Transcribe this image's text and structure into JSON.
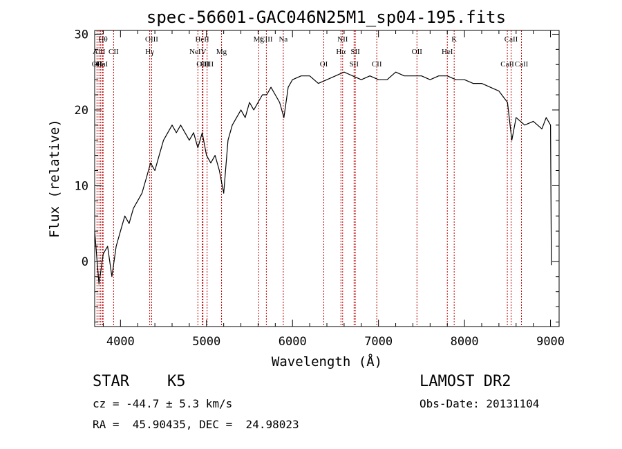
{
  "chart_data": {
    "type": "line",
    "title": "spec-56601-GAC046N25M1_sp04-195.fits",
    "xlabel": "Wavelength (Å)",
    "ylabel": "Flux (relative)",
    "xlim": [
      3700,
      9100
    ],
    "ylim": [
      -8.6,
      30.5
    ],
    "xticks": [
      4000,
      5000,
      6000,
      7000,
      8000,
      9000
    ],
    "yticks": [
      0,
      10,
      20,
      30
    ],
    "grid": false,
    "line_color": "#000000",
    "marker_color": "#c00000",
    "series": [
      {
        "x": [
          3700,
          3750,
          3800,
          3850,
          3900,
          3950,
          4000,
          4050,
          4100,
          4150,
          4200,
          4250,
          4300,
          4350,
          4400,
          4450,
          4500,
          4550,
          4600,
          4650,
          4700,
          4750,
          4800,
          4850,
          4900,
          4950,
          5000,
          5050,
          5100,
          5150,
          5200,
          5250,
          5300,
          5350,
          5400,
          5450,
          5500,
          5550,
          5600,
          5650,
          5700,
          5750,
          5800,
          5850,
          5900,
          5950,
          6000,
          6100,
          6200,
          6300,
          6400,
          6500,
          6600,
          6700,
          6800,
          6900,
          7000,
          7100,
          7200,
          7300,
          7400,
          7500,
          7600,
          7700,
          7800,
          7900,
          8000,
          8100,
          8200,
          8300,
          8400,
          8500,
          8550,
          8600,
          8700,
          8800,
          8900,
          8950,
          9000,
          9010
        ],
        "y": [
          4,
          -3,
          1,
          2,
          -2,
          2,
          4,
          6,
          5,
          7,
          8,
          9,
          11,
          13,
          12,
          14,
          16,
          17,
          18,
          17,
          18,
          17,
          16,
          17,
          15,
          17,
          14,
          13,
          14,
          12,
          9,
          16,
          18,
          19,
          20,
          19,
          21,
          20,
          21,
          22,
          22,
          23,
          22,
          21,
          19,
          23,
          24,
          24.5,
          24.5,
          23.5,
          24,
          24.5,
          25,
          24.5,
          24,
          24.5,
          24,
          24,
          25,
          24.5,
          24.5,
          24.5,
          24,
          24.5,
          24.5,
          24,
          24,
          23.5,
          23.5,
          23,
          22.5,
          21,
          16,
          19,
          18,
          18.5,
          17.5,
          19,
          18,
          -0.5
        ]
      }
    ],
    "spectral_lines": [
      {
        "name": "Hθ",
        "wavelength": 3798,
        "row": 1
      },
      {
        "name": "AlII",
        "wavelength": 3750,
        "row": 2
      },
      {
        "name": "CII",
        "wavelength": 3920,
        "row": 2
      },
      {
        "name": "OII",
        "wavelength": 3727,
        "row": 3
      },
      {
        "name": "Hε",
        "wavelength": 3770,
        "row": 3
      },
      {
        "name": "CaI",
        "wavelength": 3790,
        "row": 3
      },
      {
        "name": "OIII",
        "wavelength": 4363,
        "row": 1
      },
      {
        "name": "Hγ",
        "wavelength": 4340,
        "row": 2
      },
      {
        "name": "HeII",
        "wavelength": 4950,
        "row": 1
      },
      {
        "name": "NeIV",
        "wavelength": 4900,
        "row": 2
      },
      {
        "name": "OIII",
        "wavelength": 4959,
        "row": 3
      },
      {
        "name": "OIII",
        "wavelength": 5007,
        "row": 3
      },
      {
        "name": "Mg",
        "wavelength": 5175,
        "row": 2
      },
      {
        "name": "Mg",
        "wavelength": 5607,
        "row": 1
      },
      {
        "name": "CIII",
        "wavelength": 5696,
        "row": 1
      },
      {
        "name": "Na",
        "wavelength": 5893,
        "row": 1
      },
      {
        "name": "NII",
        "wavelength": 6583,
        "row": 1
      },
      {
        "name": "OI",
        "wavelength": 6364,
        "row": 3
      },
      {
        "name": "Hα",
        "wavelength": 6563,
        "row": 2
      },
      {
        "name": "SII",
        "wavelength": 6730,
        "row": 2
      },
      {
        "name": "SII",
        "wavelength": 6716,
        "row": 3
      },
      {
        "name": "CII",
        "wavelength": 6980,
        "row": 3
      },
      {
        "name": "OII",
        "wavelength": 7447,
        "row": 2
      },
      {
        "name": "K",
        "wavelength": 7880,
        "row": 1
      },
      {
        "name": "HeI",
        "wavelength": 7800,
        "row": 2
      },
      {
        "name": "CaII",
        "wavelength": 8542,
        "row": 1
      },
      {
        "name": "CaII",
        "wavelength": 8498,
        "row": 3
      },
      {
        "name": "CaII",
        "wavelength": 8662,
        "row": 3
      }
    ]
  },
  "info": {
    "class_label": "STAR",
    "subclass": "K5",
    "survey": "LAMOST DR2",
    "redshift_line": "cz = -44.7 ± 5.3 km/s",
    "obs_date_line": "Obs-Date: 20131104",
    "coord_line": "RA =  45.90435, DEC =  24.98023"
  }
}
